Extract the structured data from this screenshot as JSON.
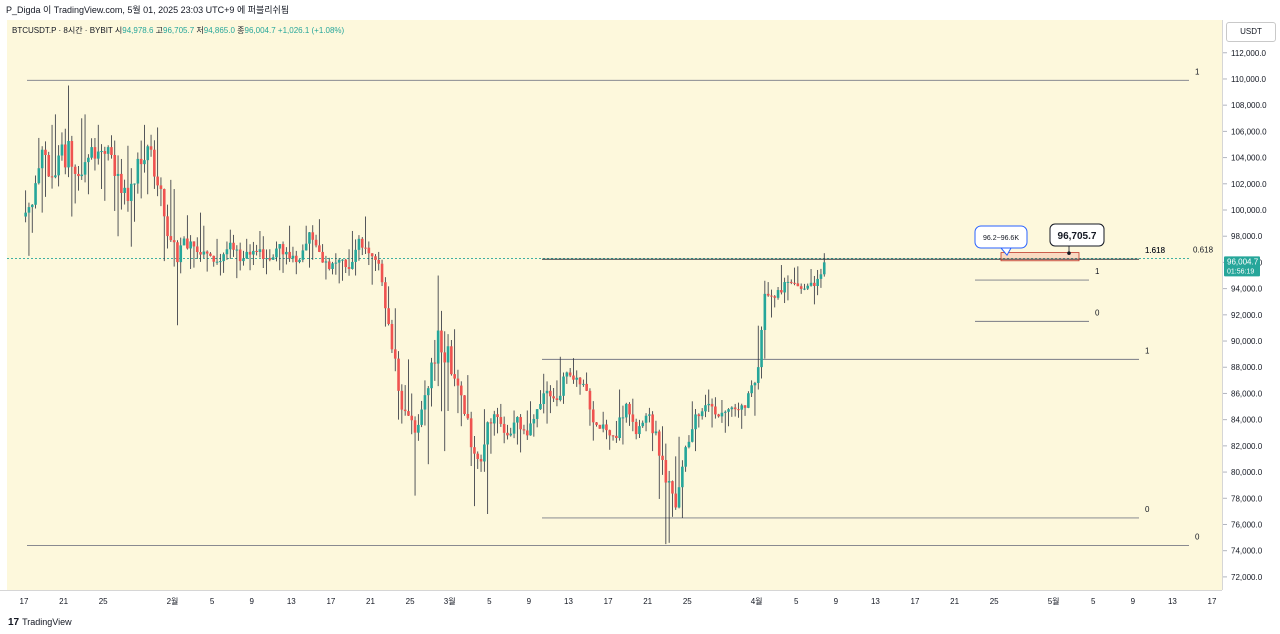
{
  "header": {
    "credit": "P_Digda 이 TradingView.com, 5월 01, 2025 23:03 UTC+9 에 퍼블리쉬됨"
  },
  "legend": {
    "symbol": "BTCUSDT.P · 8시간 · BYBIT",
    "open_label": "시",
    "open": "94,978.6",
    "high_label": "고",
    "high": "96,705.7",
    "low_label": "저",
    "low": "94,865.0",
    "close_label": "종",
    "close": "96,004.7",
    "change": "+1,026.1 (+1.08%)"
  },
  "price_scale": {
    "currency": "USDT",
    "current_price": "96,004.7",
    "countdown": "01:56:19"
  },
  "footer": {
    "logo_mark": "17",
    "logo_text": "TradingView"
  },
  "colors": {
    "up": "#26a69a",
    "down": "#ef5350",
    "background": "#fdf8dc",
    "line": "#787b86"
  },
  "chart_data": {
    "type": "candlestick",
    "symbol": "BTCUSDT.P",
    "timeframe": "8h",
    "exchange": "BYBIT",
    "ylim": [
      71000,
      114500
    ],
    "y_ticks": [
      "72,000.0",
      "74,000.0",
      "76,000.0",
      "78,000.0",
      "80,000.0",
      "82,000.0",
      "84,000.0",
      "86,000.0",
      "88,000.0",
      "90,000.0",
      "92,000.0",
      "94,000.0",
      "96,000.0",
      "98,000.0",
      "100,000.0",
      "102,000.0",
      "104,000.0",
      "106,000.0",
      "108,000.0",
      "110,000.0",
      "112,000.0"
    ],
    "x_ticks": [
      {
        "label": "17",
        "day": 0
      },
      {
        "label": "21",
        "day": 4
      },
      {
        "label": "25",
        "day": 8
      },
      {
        "label": "2월",
        "day": 15
      },
      {
        "label": "5",
        "day": 19
      },
      {
        "label": "9",
        "day": 23
      },
      {
        "label": "13",
        "day": 27
      },
      {
        "label": "17",
        "day": 31
      },
      {
        "label": "21",
        "day": 35
      },
      {
        "label": "25",
        "day": 39
      },
      {
        "label": "3월",
        "day": 43
      },
      {
        "label": "5",
        "day": 47
      },
      {
        "label": "9",
        "day": 51
      },
      {
        "label": "13",
        "day": 55
      },
      {
        "label": "17",
        "day": 59
      },
      {
        "label": "21",
        "day": 63
      },
      {
        "label": "25",
        "day": 67
      },
      {
        "label": "4월",
        "day": 74
      },
      {
        "label": "5",
        "day": 78
      },
      {
        "label": "9",
        "day": 82
      },
      {
        "label": "13",
        "day": 86
      },
      {
        "label": "17",
        "day": 90
      },
      {
        "label": "21",
        "day": 94
      },
      {
        "label": "25",
        "day": 98
      },
      {
        "label": "5월",
        "day": 104
      },
      {
        "label": "5",
        "day": 108
      },
      {
        "label": "9",
        "day": 112
      },
      {
        "label": "13",
        "day": 116
      },
      {
        "label": "17",
        "day": 120
      }
    ],
    "candles_daily": [
      [
        99500,
        101500,
        96500,
        100400
      ],
      [
        100400,
        105500,
        99800,
        104600
      ],
      [
        104600,
        106500,
        101000,
        102500
      ],
      [
        102500,
        107300,
        101800,
        105000
      ],
      [
        105000,
        109500,
        99500,
        103300
      ],
      [
        103300,
        107000,
        100500,
        102700
      ],
      [
        102700,
        107300,
        101200,
        104800
      ],
      [
        104800,
        106500,
        101600,
        104500
      ],
      [
        104500,
        105700,
        100700,
        104200
      ],
      [
        104200,
        105300,
        98000,
        101300
      ],
      [
        101300,
        104900,
        97200,
        102000
      ],
      [
        102000,
        105300,
        99100,
        103500
      ],
      [
        103500,
        106500,
        101200,
        104600
      ],
      [
        104600,
        106300,
        100300,
        101600
      ],
      [
        101600,
        102300,
        96100,
        97700
      ],
      [
        97700,
        101600,
        91200,
        97300
      ],
      [
        97300,
        99600,
        95500,
        97600
      ],
      [
        97600,
        99800,
        95600,
        96600
      ],
      [
        96600,
        98800,
        95300,
        96500
      ],
      [
        96500,
        97800,
        95000,
        96100
      ],
      [
        96100,
        98500,
        95200,
        97500
      ],
      [
        97500,
        98100,
        94800,
        96100
      ],
      [
        96100,
        97800,
        95400,
        96600
      ],
      [
        96600,
        98400,
        95800,
        97000
      ],
      [
        97000,
        98000,
        95100,
        96200
      ],
      [
        96200,
        97600,
        95400,
        97400
      ],
      [
        97400,
        98800,
        95200,
        96300
      ],
      [
        96300,
        97200,
        95100,
        96200
      ],
      [
        96200,
        98800,
        95600,
        98300
      ],
      [
        98300,
        99300,
        96200,
        96800
      ],
      [
        96800,
        97400,
        94700,
        95500
      ],
      [
        95500,
        96700,
        94400,
        96200
      ],
      [
        96200,
        97000,
        94600,
        95500
      ],
      [
        95500,
        98400,
        95000,
        97800
      ],
      [
        97800,
        99500,
        95800,
        96700
      ],
      [
        96700,
        96800,
        94300,
        95900
      ],
      [
        95900,
        96200,
        91100,
        91300
      ],
      [
        91300,
        92500,
        84000,
        86200
      ],
      [
        86200,
        88600,
        83700,
        84300
      ],
      [
        84300,
        86000,
        78200,
        83600
      ],
      [
        83600,
        87000,
        80600,
        86400
      ],
      [
        86400,
        95000,
        85000,
        90800
      ],
      [
        90800,
        92300,
        81600,
        89600
      ],
      [
        89600,
        90900,
        84500,
        86600
      ],
      [
        86600,
        87400,
        83500,
        84100
      ],
      [
        84100,
        84600,
        77400,
        81000
      ],
      [
        81000,
        84800,
        76800,
        83800
      ],
      [
        83800,
        84900,
        81400,
        84200
      ],
      [
        84200,
        85200,
        82200,
        82800
      ],
      [
        82800,
        84700,
        82100,
        84200
      ],
      [
        84200,
        84700,
        81500,
        82800
      ],
      [
        82800,
        85400,
        82700,
        84800
      ],
      [
        84800,
        87500,
        83700,
        86200
      ],
      [
        86200,
        87000,
        84500,
        85500
      ],
      [
        85500,
        88800,
        85200,
        87600
      ],
      [
        87600,
        88700,
        86500,
        87200
      ],
      [
        87200,
        87600,
        85900,
        86200
      ],
      [
        86200,
        86400,
        82400,
        83600
      ],
      [
        83600,
        84600,
        82500,
        83200
      ],
      [
        83200,
        83900,
        81700,
        82600
      ],
      [
        82600,
        86300,
        82100,
        85200
      ],
      [
        85200,
        85600,
        82500,
        82900
      ],
      [
        82900,
        84500,
        82600,
        84300
      ],
      [
        84300,
        84900,
        81600,
        83100
      ],
      [
        83100,
        83500,
        74500,
        79200
      ],
      [
        79200,
        81200,
        74600,
        77300
      ],
      [
        77300,
        82700,
        76500,
        81900
      ],
      [
        81900,
        85400,
        81600,
        84400
      ],
      [
        84400,
        85900,
        83400,
        85100
      ],
      [
        85100,
        86300,
        83400,
        84400
      ],
      [
        84400,
        85500,
        83000,
        84600
      ],
      [
        84600,
        85200,
        83500,
        84800
      ],
      [
        84800,
        85300,
        83300,
        84900
      ],
      [
        84900,
        87000,
        84300,
        86800
      ],
      [
        86800,
        94600,
        86300,
        93600
      ],
      [
        93600,
        94500,
        91800,
        93300
      ],
      [
        93300,
        95800,
        92900,
        94500
      ],
      [
        94500,
        95600,
        93100,
        94400
      ],
      [
        94400,
        95700,
        93600,
        94000
      ],
      [
        94000,
        95500,
        92800,
        94200
      ],
      [
        94200,
        96705.7,
        93500,
        96004.7
      ]
    ],
    "horizontal_lines": [
      {
        "price": 109900,
        "label": "1"
      },
      {
        "price": 96300,
        "label": "0.618"
      },
      {
        "price": 74400,
        "label": "0"
      },
      {
        "price": 96250,
        "label": "1.618"
      },
      {
        "price": 88600,
        "label": "1"
      },
      {
        "price": 76500,
        "label": "0"
      },
      {
        "price": 94650,
        "label": "1"
      },
      {
        "price": 91500,
        "label": "0"
      }
    ],
    "annotations": [
      {
        "type": "callout",
        "text": "96.2~96.6K",
        "price": 96400
      },
      {
        "type": "callout",
        "text": "96,705.7",
        "price": 96705.7
      },
      {
        "type": "zone",
        "from": 96200,
        "to": 96600
      }
    ]
  }
}
